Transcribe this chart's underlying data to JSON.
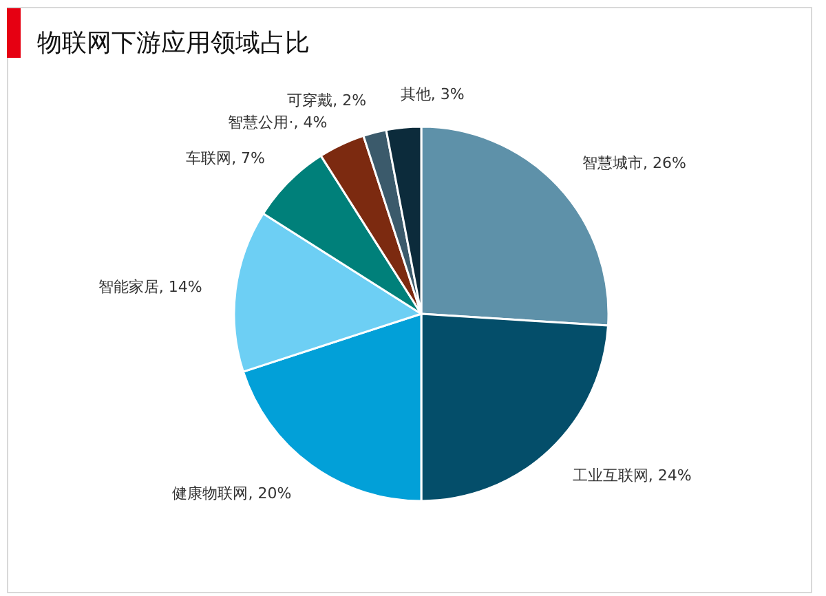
{
  "chart_data": {
    "type": "pie",
    "title": "物联网下游应用领域占比",
    "categories": [
      "智慧城市",
      "工业互联网",
      "健康物联网",
      "智能家居",
      "车联网",
      "智慧公用·",
      "可穿戴",
      "其他"
    ],
    "values": [
      26,
      24,
      20,
      14,
      7,
      4,
      2,
      3
    ],
    "colors": [
      "#5e91a9",
      "#044e6a",
      "#02a0d8",
      "#6dcff4",
      "#00807a",
      "#7c2a10",
      "#3b5a6b",
      "#0c2b3b"
    ],
    "value_labels": [
      "26%",
      "24%",
      "20%",
      "14%",
      "7%",
      "4%",
      "2%",
      "3%"
    ]
  }
}
